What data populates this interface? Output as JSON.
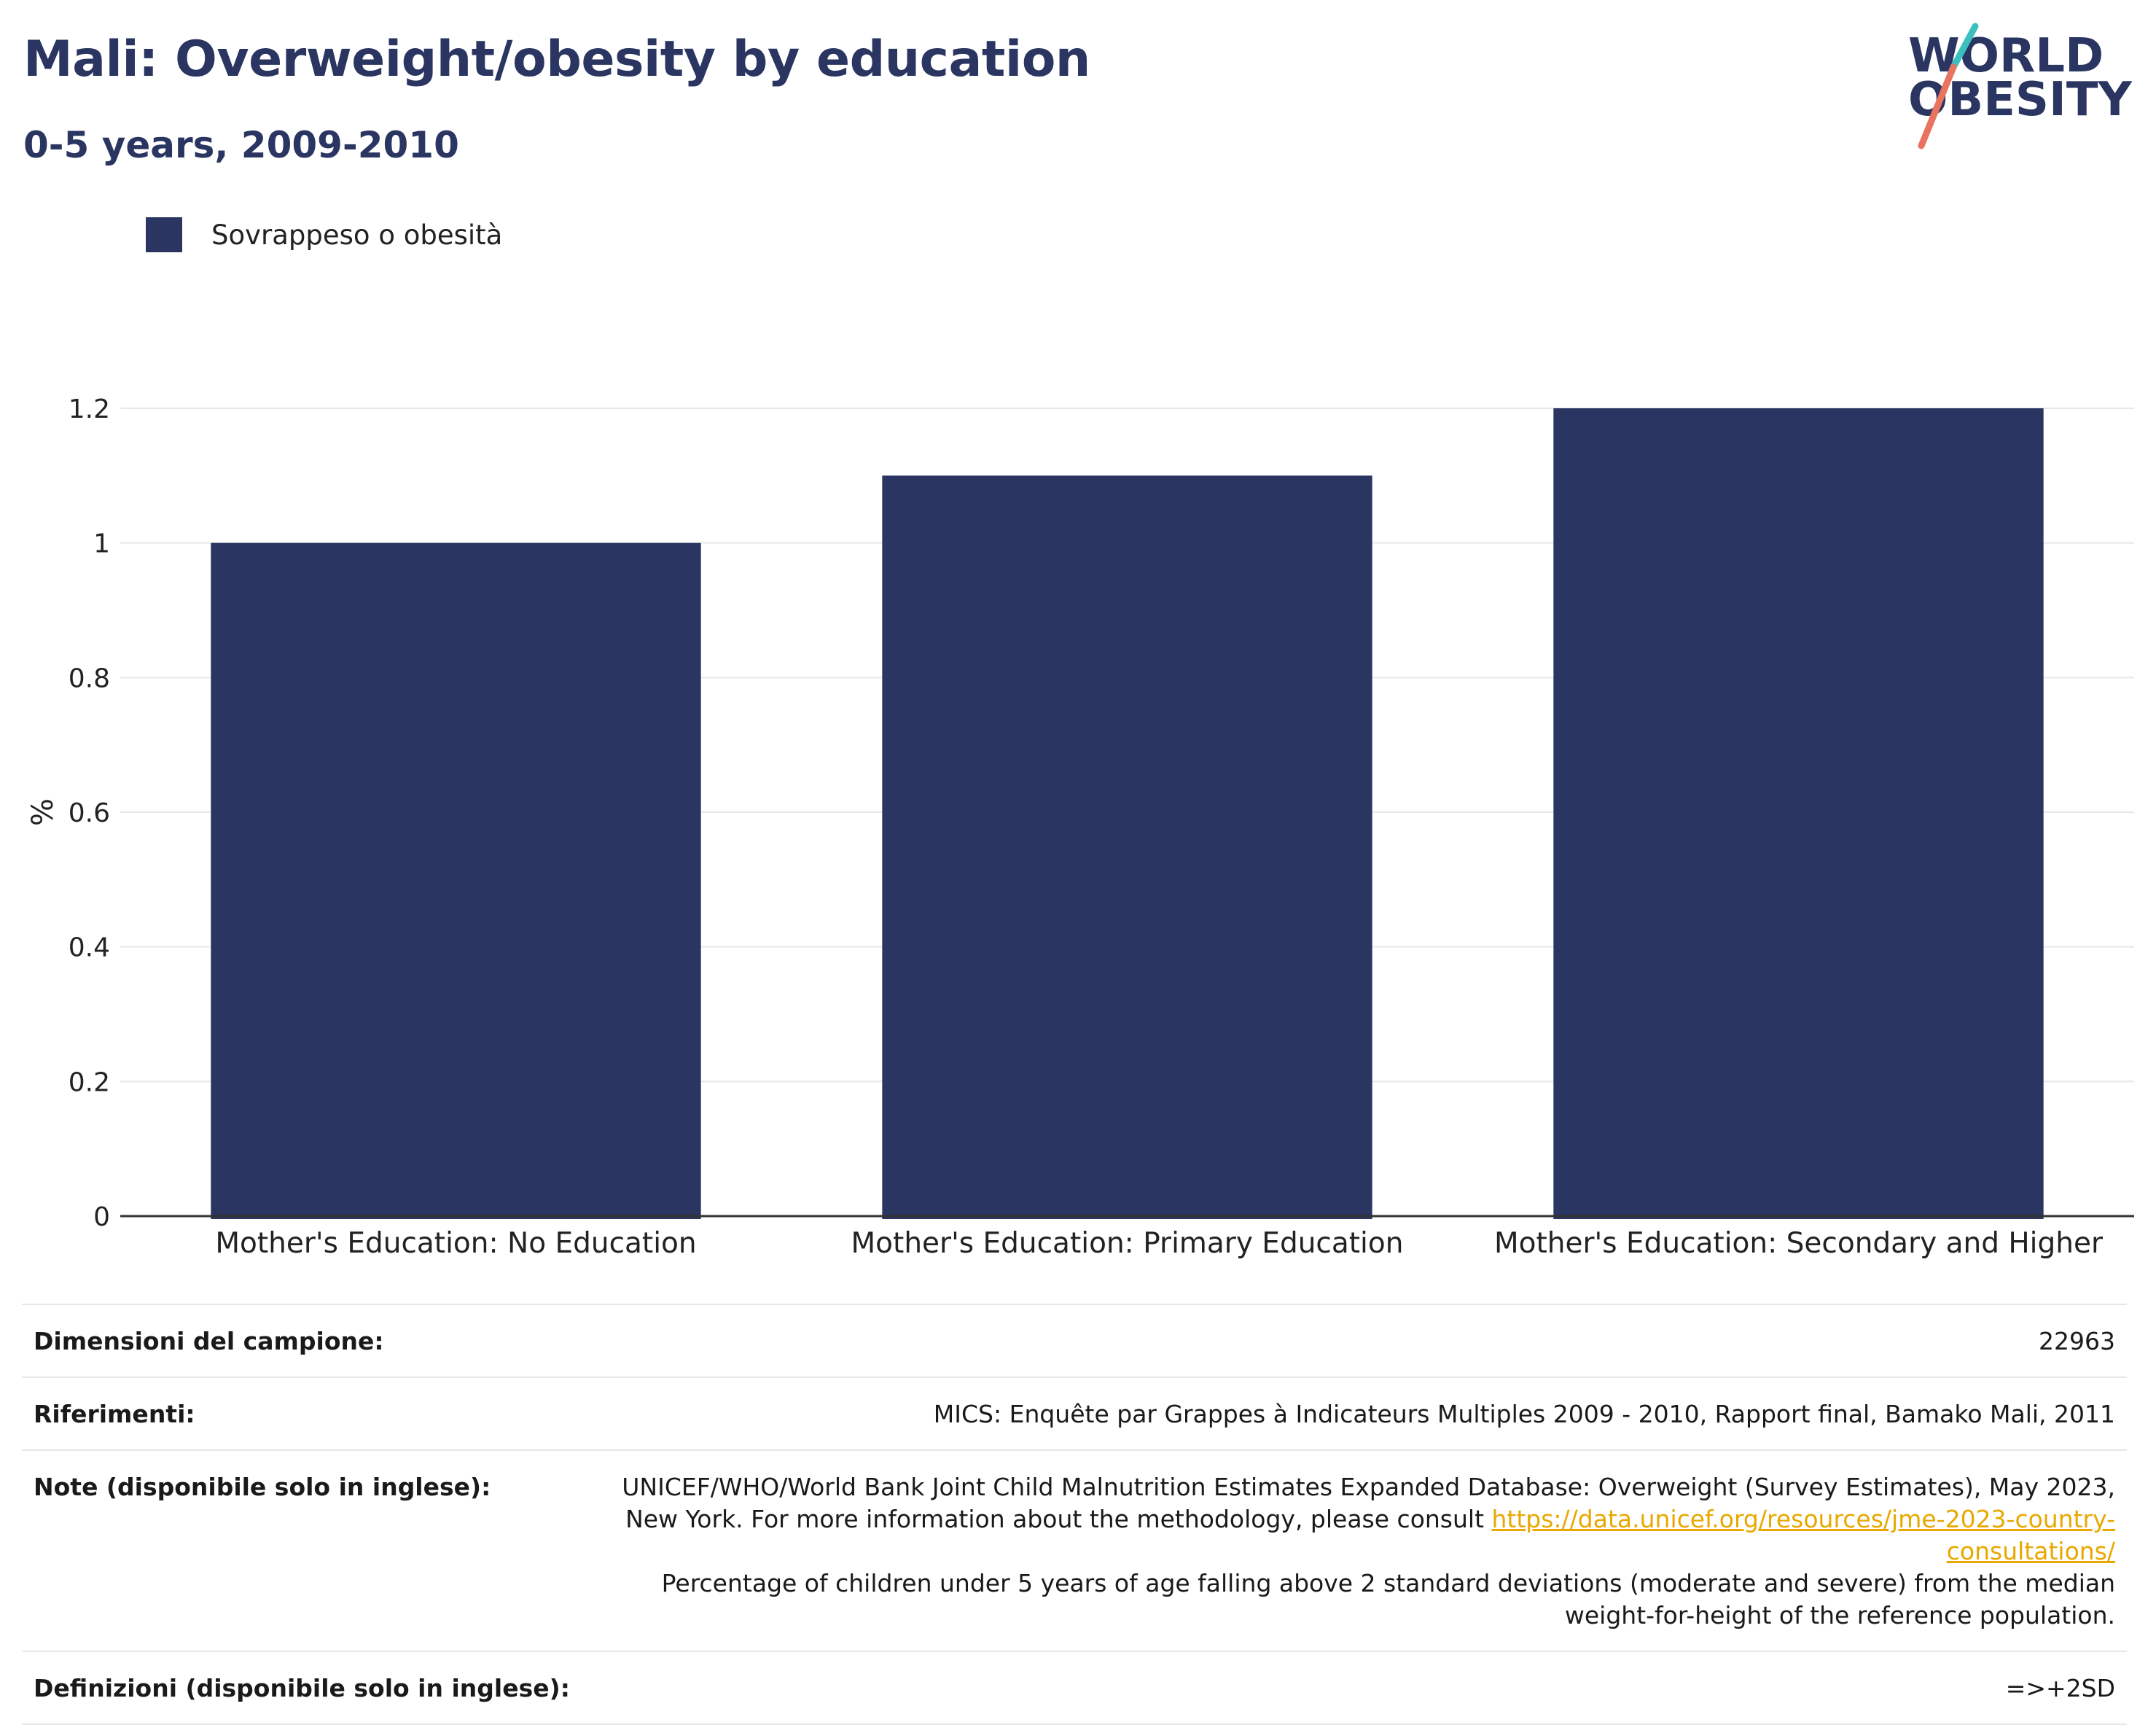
{
  "header": {
    "title": "Mali: Overweight/obesity by education",
    "subtitle": "0-5 years, 2009-2010"
  },
  "logo": {
    "line1": "WORLD",
    "line2": "OBESITY",
    "colors": {
      "text": "#2a3561",
      "slash_top": "#3bbfbf",
      "slash_bottom": "#e8735e"
    }
  },
  "chart_data": {
    "type": "bar",
    "categories": [
      "Mother's Education: No Education",
      "Mother's Education: Primary Education",
      "Mother's Education: Secondary and Higher"
    ],
    "series": [
      {
        "name": "Sovrappeso o obesità",
        "values": [
          1.0,
          1.1,
          1.2
        ],
        "color": "#2a3561"
      }
    ],
    "ylabel": "%",
    "xlabel": "",
    "ylim": [
      0,
      1.2
    ],
    "yticks": [
      0,
      0.2,
      0.4,
      0.6,
      0.8,
      1,
      1.2
    ],
    "ytick_labels": [
      "0",
      "0.2",
      "0.4",
      "0.6",
      "0.8",
      "1",
      "1.2"
    ],
    "grid": true,
    "legend_position": "top-left"
  },
  "meta": {
    "sample_label": "Dimensioni del campione:",
    "sample_value": "22963",
    "refs_label": "Riferimenti:",
    "refs_value": "MICS: Enquête par Grappes à Indicateurs Multiples 2009 - 2010, Rapport final, Bamako Mali, 2011",
    "notes_label": "Note (disponibile solo in inglese):",
    "notes_text1": "UNICEF/WHO/World Bank Joint Child Malnutrition Estimates Expanded Database: Overweight (Survey Estimates), May 2023, New York. For more information about the methodology, please consult ",
    "notes_link": "https://data.unicef.org/resources/jme-2023-country-consultations/",
    "notes_text2": "Percentage of children under 5 years of age falling above 2 standard deviations (moderate and severe) from the median weight-for-height of the reference population.",
    "defs_label": "Definizioni (disponibile solo in inglese):",
    "defs_value": "=>+2SD"
  }
}
